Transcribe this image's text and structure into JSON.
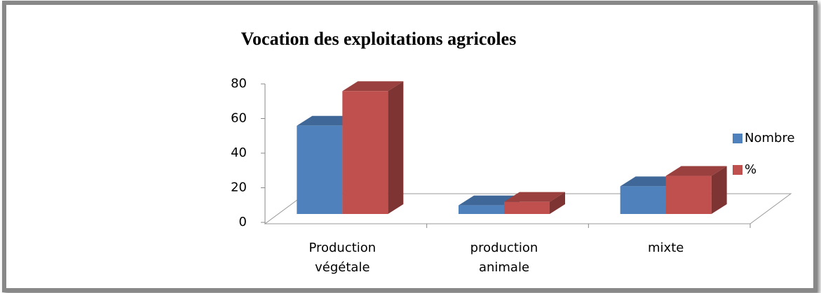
{
  "chart_data": {
    "type": "bar3d",
    "title": "Vocation des exploitations agricoles",
    "categories": [
      "Production\nvégétale",
      "production\nanimale",
      "mixte"
    ],
    "series": [
      {
        "name": "Nombre",
        "color": "#4f81bd",
        "values": [
          51,
          5,
          16
        ]
      },
      {
        "name": "%",
        "color": "#c0504d",
        "values": [
          71,
          7,
          22
        ]
      }
    ],
    "ylim": [
      0,
      80
    ],
    "yticks": [
      0,
      20,
      40,
      60,
      80
    ],
    "legend": "right"
  }
}
